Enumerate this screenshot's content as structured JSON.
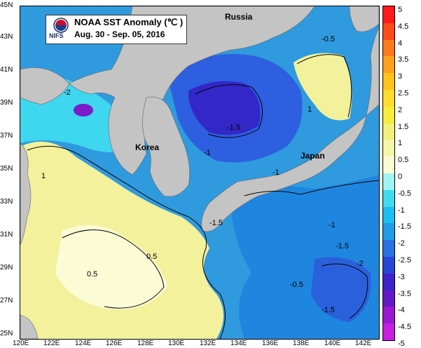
{
  "title": {
    "line1": "NOAA SST Anomaly (℃ )",
    "line2": "Aug. 30 - Sep. 05, 2016",
    "agency": "NIFS"
  },
  "places": [
    {
      "name": "Russia"
    },
    {
      "name": "Korea"
    },
    {
      "name": "Japan"
    }
  ],
  "lat_ticks": [
    "45N",
    "43N",
    "41N",
    "39N",
    "37N",
    "35N",
    "33N",
    "31N",
    "29N",
    "27N",
    "25N"
  ],
  "lon_ticks": [
    "120E",
    "122E",
    "124E",
    "126E",
    "128E",
    "130E",
    "132E",
    "134E",
    "136E",
    "138E",
    "140E",
    "142E"
  ],
  "colorbar": {
    "labels": [
      "5",
      "4.5",
      "4",
      "3.5",
      "3",
      "2.5",
      "2",
      "1.5",
      "1",
      "0.5",
      "0",
      "-0.5",
      "-1",
      "-1.5",
      "-2",
      "-2.5",
      "-3",
      "-3.5",
      "-4",
      "-4.5",
      "-5"
    ],
    "colors": [
      "#ff1a1a",
      "#ff4b1a",
      "#ff7a1a",
      "#ffa019",
      "#ffc21a",
      "#ffdd2a",
      "#f7ec3a",
      "#f0f07a",
      "#f6f6a8",
      "#fbfbd6",
      "#9ff3f3",
      "#3fdcf0",
      "#19bff0",
      "#1f9bea",
      "#2a72e4",
      "#2747d8",
      "#3a23c8",
      "#6419c8",
      "#9a18d2",
      "#c81ee0"
    ]
  },
  "contour_labels": [
    "-2",
    "-1",
    "-1.5",
    "-0.5",
    "0.5",
    "1",
    "-1",
    "0.5",
    "-1.5",
    "-0.5",
    "-1.5",
    "1",
    "-2",
    "-1",
    "-1.5"
  ]
}
